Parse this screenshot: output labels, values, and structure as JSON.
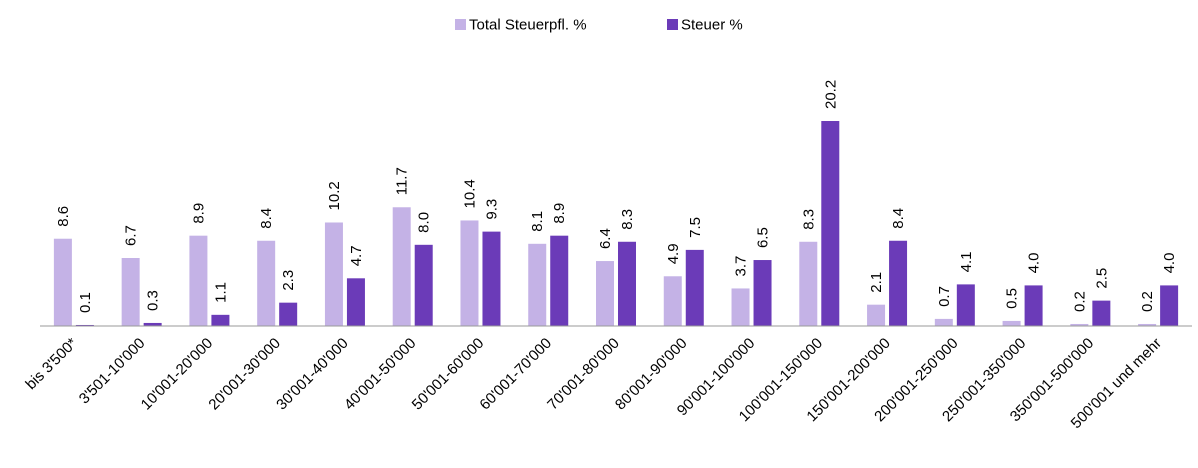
{
  "chart_data": {
    "type": "bar",
    "categories": [
      "bis 3'500*",
      "3'501-10'000",
      "10'001-20'000",
      "20'001-30'000",
      "30'001-40'000",
      "40'001-50'000",
      "50'001-60'000",
      "60'001-70'000",
      "70'001-80'000",
      "80'001-90'000",
      "90'001-100'000",
      "100'001-150'000",
      "150'001-200'000",
      "200'001-250'000",
      "250'001-350'000",
      "350'001-500'000",
      "500'001 und mehr"
    ],
    "series": [
      {
        "name": "Total Steuerpfl. %",
        "color": "#c4b2e6",
        "values": [
          8.6,
          6.7,
          8.9,
          8.4,
          10.2,
          11.7,
          10.4,
          8.1,
          6.4,
          4.9,
          3.7,
          8.3,
          2.1,
          0.7,
          0.5,
          0.2,
          0.2
        ],
        "value_labels": [
          "8.6",
          "6.7",
          "8.9",
          "8.4",
          "10.2",
          "11.7",
          "10.4",
          "8.1",
          "6.4",
          "4.9",
          "3.7",
          "8.3",
          "2.1",
          "0.7",
          "0.5",
          "0.2",
          "0.2"
        ]
      },
      {
        "name": "Steuer %",
        "color": "#6b3bb8",
        "values": [
          0.1,
          0.3,
          1.1,
          2.3,
          4.7,
          8,
          9.3,
          8.9,
          8.3,
          7.5,
          6.5,
          20.2,
          8.4,
          4.1,
          4,
          2.5,
          4
        ],
        "value_labels": [
          "0.1",
          "0.3",
          "1.1",
          "2.3",
          "4.7",
          "8.0",
          "9.3",
          "8.9",
          "8.3",
          "7.5",
          "6.5",
          "20.2",
          "8.4",
          "4.1",
          "4.0",
          "2.5",
          "4.0"
        ]
      }
    ],
    "legend": "top"
  }
}
